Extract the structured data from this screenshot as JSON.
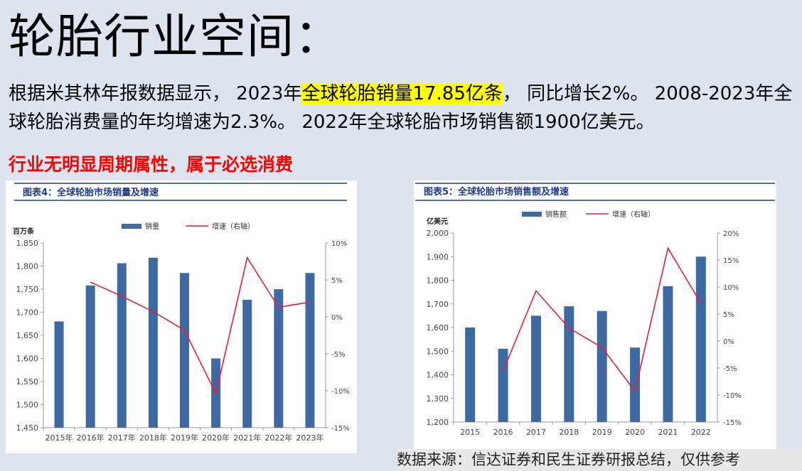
{
  "title": "轮胎行业空间：",
  "para": {
    "p1": "根据米其林年报数据显示， 2023年",
    "highlight": "全球轮胎销量17.85亿条",
    "p2": "， 同比增长2%。 2008-2023年全球轮胎消费量的年均增速为2.3%。 2022年全球轮胎市场销售额1900亿美元。"
  },
  "red_line": "行业无明显周期属性，属于必选消费",
  "source": "数据来源：信达证券和民生证券研报总结，仅供参考",
  "colors": {
    "bar": "#3e6aa3",
    "line": "#e0203c",
    "title_blue": "#1f3a8a"
  },
  "chart_data": [
    {
      "type": "bar",
      "title": "图表4：全球轮胎市场销量及增速",
      "ylabel": "百万条",
      "categories": [
        "2015年",
        "2016年",
        "2017年",
        "2018年",
        "2019年",
        "2020年",
        "2021年",
        "2022年",
        "2023年"
      ],
      "ylim": [
        1450,
        1850
      ],
      "yticks": [
        "1,450",
        "1,500",
        "1,550",
        "1,600",
        "1,650",
        "1,700",
        "1,750",
        "1,800",
        "1,850"
      ],
      "y2lim": [
        -15,
        10
      ],
      "y2ticks": [
        "-15%",
        "-10%",
        "-5%",
        "0%",
        "5%",
        "10%"
      ],
      "series": [
        {
          "name": "销量",
          "type": "bar",
          "values": [
            1680,
            1758,
            1806,
            1818,
            1785,
            1600,
            1727,
            1750,
            1785
          ]
        },
        {
          "name": "增速（右轴）",
          "type": "line",
          "axis": "right",
          "values": [
            null,
            4.7,
            2.8,
            0.7,
            -1.8,
            -10.4,
            8.0,
            1.3,
            2.0
          ]
        }
      ]
    },
    {
      "type": "bar",
      "title": "图表5：全球轮胎市场销售额及增速",
      "ylabel": "亿美元",
      "categories": [
        "2015",
        "2016",
        "2017",
        "2018",
        "2019",
        "2020",
        "2021",
        "2022"
      ],
      "ylim": [
        1200,
        2000
      ],
      "yticks": [
        "1,200",
        "1,300",
        "1,400",
        "1,500",
        "1,600",
        "1,700",
        "1,800",
        "1,900",
        "2,000"
      ],
      "y2lim": [
        -15,
        20
      ],
      "y2ticks": [
        "-15%",
        "-10%",
        "-5%",
        "0%",
        "5%",
        "10%",
        "15%",
        "20%"
      ],
      "series": [
        {
          "name": "销售额",
          "type": "bar",
          "values": [
            1600,
            1510,
            1650,
            1690,
            1670,
            1515,
            1775,
            1900
          ]
        },
        {
          "name": "增速（右轴）",
          "type": "line",
          "axis": "right",
          "values": [
            null,
            -5.6,
            9.3,
            2.4,
            -1.2,
            -9.3,
            17.2,
            7.0
          ]
        }
      ]
    }
  ]
}
